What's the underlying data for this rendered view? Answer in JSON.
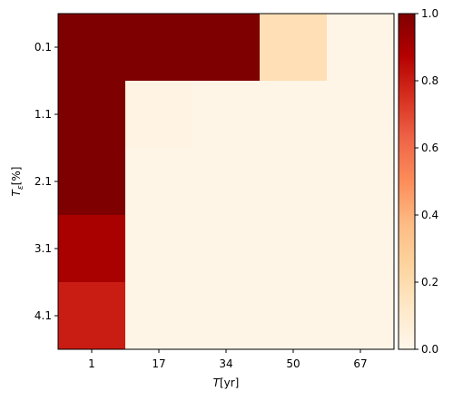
{
  "chart_data": {
    "type": "heatmap",
    "x_categories": [
      "1",
      "17",
      "34",
      "50",
      "67"
    ],
    "y_categories": [
      "0.1",
      "1.1",
      "2.1",
      "3.1",
      "4.1"
    ],
    "xlabel": "T[yr]",
    "ylabel": "Tε[%]",
    "values": [
      [
        1.0,
        1.0,
        1.0,
        0.18,
        0.02
      ],
      [
        1.0,
        0.03,
        0.02,
        0.02,
        0.02
      ],
      [
        1.0,
        0.02,
        0.02,
        0.02,
        0.02
      ],
      [
        0.9,
        0.02,
        0.02,
        0.02,
        0.02
      ],
      [
        0.8,
        0.02,
        0.02,
        0.02,
        0.02
      ]
    ],
    "colorbar": {
      "colormap": "OrRd",
      "vmin": 0.0,
      "vmax": 1.0,
      "ticks": [
        "0.0",
        "0.2",
        "0.4",
        "0.6",
        "0.8",
        "1.0"
      ]
    },
    "grid": false
  }
}
